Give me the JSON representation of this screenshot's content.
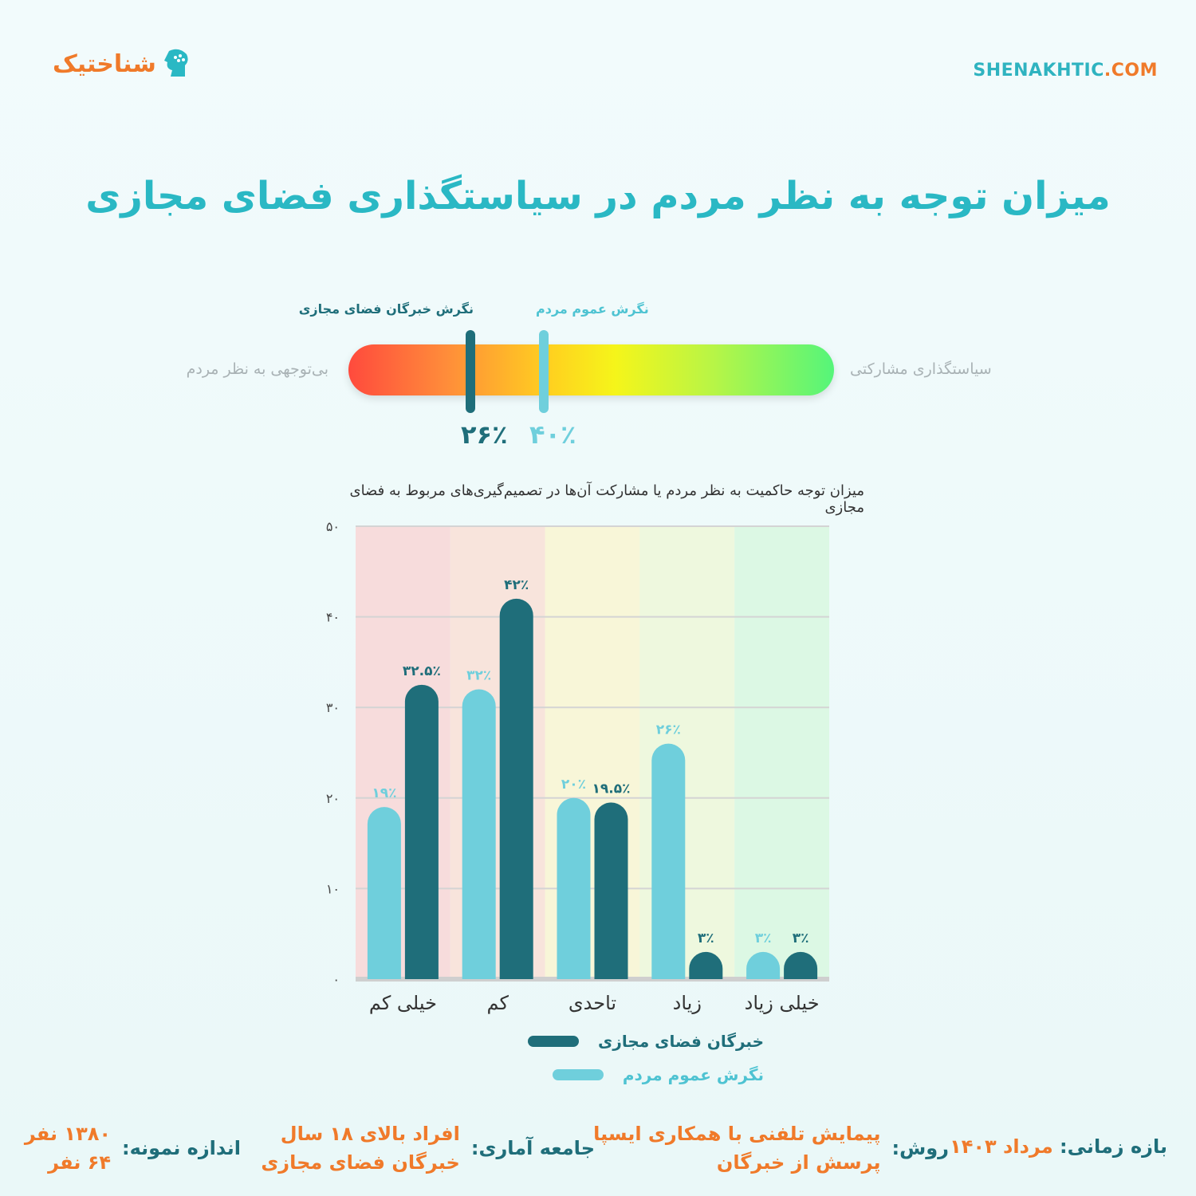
{
  "header": {
    "logo_text": "شناختیک",
    "site_part1": "SHENAKHTIC",
    "site_part2": ".COM"
  },
  "title": "میزان توجه به نظر مردم در سیاستگذاری فضای مجازی",
  "gauge": {
    "left_label": "بی‌توجهی به نظر مردم",
    "right_label": "سیاستگذاری مشارکتی",
    "experts_label": "نگرش خبرگان فضای مجازی",
    "experts_value": "۲۶٪",
    "experts_percent": 26,
    "public_label": "نگرش عموم مردم",
    "public_value": "۴۰٪",
    "public_percent": 40
  },
  "chart_title": "میزان توجه حاکمیت به نظر مردم یا مشارکت آن‌ها در تصمیم‌گیری‌های مربوط به فضای مجازی",
  "chart_data": {
    "type": "bar",
    "categories": [
      "خیلی کم",
      "کم",
      "تاحدی",
      "زیاد",
      "خیلی زیاد"
    ],
    "series": [
      {
        "name": "نگرش عموم مردم",
        "values": [
          19,
          32,
          20,
          26,
          3
        ],
        "labels": [
          "۱۹٪",
          "۳۲٪",
          "۲۰٪",
          "۲۶٪",
          "۳٪"
        ],
        "color": "#6fcfdc"
      },
      {
        "name": "خبرگان فضای مجازی",
        "values": [
          32.5,
          42,
          19.5,
          3,
          3
        ],
        "labels": [
          "۳۲.۵٪",
          "۴۲٪",
          "۱۹.۵٪",
          "۳٪",
          "۳٪"
        ],
        "color": "#1f6e7a"
      }
    ],
    "ylim": [
      0,
      50
    ],
    "yticks": [
      "۰",
      "۱۰",
      "۲۰",
      "۳۰",
      "۴۰",
      "۵۰"
    ],
    "band_colors": [
      "#f7dcdc",
      "#f8e4dc",
      "#f8f6d8",
      "#eef8de",
      "#dcf8e4"
    ],
    "grid": true
  },
  "footer": {
    "period_label": "بازه زمانی:",
    "period_value": "مرداد ۱۴۰۳",
    "method_label": "روش:",
    "method_line1": "پیمایش تلفنی با همکاری ایسپا",
    "method_line2": "پرسش از خبرگان",
    "population_label": "جامعه آماری:",
    "population_line1": "افراد بالای ۱۸ سال",
    "population_line2": "خبرگان فضای مجازی",
    "sample_label": "اندازه نمونه:",
    "sample_line1": "۱۳۸۰ نفر",
    "sample_line2": "۶۴ نفر"
  }
}
